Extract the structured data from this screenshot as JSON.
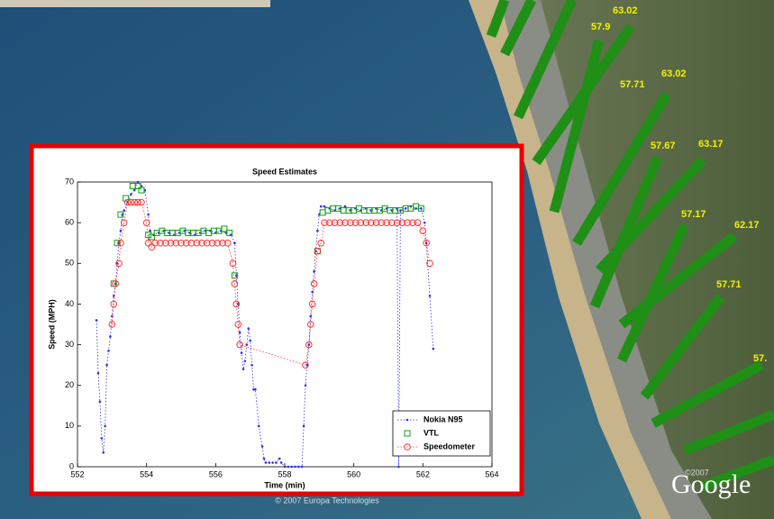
{
  "chart_data": {
    "type": "scatter",
    "title": "Speed Estimates",
    "xlabel": "Time (min)",
    "ylabel": "Speed (MPH)",
    "xlim": [
      552,
      564
    ],
    "xticks": [
      552,
      554,
      556,
      558,
      560,
      562,
      564
    ],
    "ylim": [
      0,
      70
    ],
    "yticks": [
      0,
      10,
      20,
      30,
      40,
      50,
      60,
      70
    ],
    "legend": "lower right",
    "series": [
      {
        "name": "Nokia N95",
        "color": "#3030f0",
        "marker": "dot",
        "line": true,
        "x": [
          552.55,
          552.6,
          552.65,
          552.7,
          552.75,
          552.8,
          552.85,
          552.9,
          552.95,
          553.0,
          553.05,
          553.1,
          553.15,
          553.2,
          553.25,
          553.3,
          553.35,
          553.45,
          553.55,
          553.65,
          553.75,
          553.85,
          553.95,
          554.05,
          554.1,
          554.2,
          554.35,
          554.5,
          554.65,
          554.8,
          554.95,
          555.1,
          555.25,
          555.4,
          555.55,
          555.7,
          555.85,
          556.0,
          556.15,
          556.3,
          556.45,
          556.55,
          556.6,
          556.65,
          556.7,
          556.75,
          556.8,
          556.85,
          556.9,
          556.95,
          557.0,
          557.05,
          557.1,
          557.15,
          557.25,
          557.35,
          557.4,
          557.45,
          557.55,
          557.65,
          557.75,
          557.85,
          557.9,
          558.0,
          558.1,
          558.2,
          558.3,
          558.4,
          558.5,
          558.55,
          558.6,
          558.65,
          558.7,
          558.75,
          558.8,
          558.85,
          558.9,
          558.95,
          559.0,
          559.05,
          559.15,
          559.3,
          559.45,
          559.6,
          559.75,
          559.9,
          560.05,
          560.2,
          560.35,
          560.5,
          560.65,
          560.8,
          560.95,
          561.1,
          561.25,
          561.3,
          561.35,
          561.5,
          561.65,
          561.8,
          561.95,
          562.05,
          562.1,
          562.2,
          562.3
        ],
        "values": [
          36,
          23,
          16,
          7,
          3.5,
          10,
          25,
          28.5,
          32,
          37,
          42,
          45,
          50,
          55,
          58,
          62,
          63,
          65,
          67,
          68,
          70,
          69,
          68,
          62,
          58,
          57,
          57.5,
          58,
          57.5,
          57,
          57.5,
          58,
          57.5,
          57,
          57.5,
          58,
          58,
          57.5,
          58,
          57.5,
          57,
          55,
          47,
          40,
          33,
          28,
          24,
          26,
          30,
          34,
          31,
          25,
          19,
          19,
          10,
          5,
          2,
          1,
          1,
          1,
          1,
          2,
          1,
          0,
          0,
          0,
          0,
          0,
          0,
          10,
          20,
          25,
          30,
          37,
          43,
          48,
          53,
          58,
          62,
          64,
          64,
          63.5,
          63,
          63.5,
          64,
          63,
          63.5,
          63,
          63.5,
          63,
          63.5,
          63,
          63.5,
          63,
          63.5,
          0,
          63,
          63.5,
          64,
          63.5,
          63.5,
          60,
          55,
          42,
          29
        ]
      },
      {
        "name": "VTL",
        "color": "#10a010",
        "marker": "square",
        "line": false,
        "x": [
          553.05,
          553.15,
          553.25,
          553.4,
          553.6,
          553.75,
          553.85,
          554.05,
          554.15,
          554.3,
          554.45,
          554.6,
          554.75,
          554.9,
          555.05,
          555.2,
          555.35,
          555.5,
          555.65,
          555.8,
          555.95,
          556.1,
          556.25,
          556.4,
          556.55,
          558.95,
          559.1,
          559.25,
          559.4,
          559.55,
          559.7,
          559.85,
          560.0,
          560.15,
          560.3,
          560.45,
          560.6,
          560.75,
          560.9,
          561.05,
          561.2,
          561.35,
          561.5,
          561.65,
          561.8,
          561.95
        ],
        "values": [
          45,
          55,
          62,
          66,
          69,
          69,
          68,
          57,
          56.5,
          57.5,
          58,
          57.5,
          57.5,
          57.5,
          58,
          57.5,
          57.5,
          57.5,
          58,
          57.5,
          58,
          58,
          58.5,
          57.5,
          47,
          53,
          62.5,
          63,
          63.5,
          63.5,
          63,
          63,
          63,
          63.5,
          63,
          63,
          63,
          63,
          63.5,
          63,
          63,
          63,
          63.5,
          63.5,
          64,
          63.5
        ]
      },
      {
        "name": "Speedometer",
        "color": "#ff3030",
        "marker": "circle",
        "line": true,
        "x": [
          553.0,
          553.05,
          553.1,
          553.2,
          553.25,
          553.35,
          553.45,
          553.55,
          553.65,
          553.75,
          553.85,
          554.0,
          554.05,
          554.15,
          554.25,
          554.4,
          554.55,
          554.7,
          554.85,
          555.0,
          555.15,
          555.3,
          555.45,
          555.6,
          555.75,
          555.9,
          556.05,
          556.2,
          556.35,
          556.5,
          556.55,
          556.6,
          556.65,
          556.7,
          558.6,
          558.7,
          558.75,
          558.8,
          558.85,
          558.95,
          559.05,
          559.15,
          559.3,
          559.45,
          559.6,
          559.75,
          559.9,
          560.05,
          560.2,
          560.35,
          560.5,
          560.65,
          560.8,
          560.95,
          561.1,
          561.25,
          561.4,
          561.55,
          561.7,
          561.85,
          562.0,
          562.1,
          562.2
        ],
        "values": [
          35,
          40,
          45,
          50,
          55,
          60,
          65,
          65,
          65,
          65,
          65,
          60,
          55,
          54,
          55,
          55,
          55,
          55,
          55,
          55,
          55,
          55,
          55,
          55,
          55,
          55,
          55,
          55,
          55,
          50,
          45,
          40,
          35,
          30,
          25,
          30,
          35,
          40,
          45,
          53,
          55,
          60,
          60,
          60,
          60,
          60,
          60,
          60,
          60,
          60,
          60,
          60,
          60,
          60,
          60,
          60,
          60,
          60,
          60,
          60,
          58,
          55,
          50
        ]
      }
    ]
  },
  "map": {
    "bar_labels": [
      "63.02",
      "57.9",
      "57.71",
      "63.02",
      "57.67",
      "63.17",
      "57.17",
      "62.17",
      "57.71",
      "57."
    ],
    "credit": "© 2007 Europa Technologies",
    "copyright": "©2007",
    "logo": "Google"
  }
}
